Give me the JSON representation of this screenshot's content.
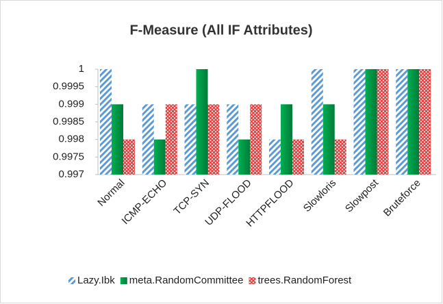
{
  "chart_data": {
    "type": "bar",
    "title": "F-Measure (All IF Attributes)",
    "categories": [
      "Normal",
      "ICMP-ECHO",
      "TCP-SYN",
      "UDP-FLOOD",
      "HTTPFLOOD",
      "Slowloris",
      "Slowpost",
      "Bruteforce"
    ],
    "series": [
      {
        "name": "Lazy.Ibk",
        "color": "#5b9bd5",
        "pattern": "stripes",
        "values": [
          1,
          0.999,
          0.999,
          0.999,
          0.998,
          1,
          1,
          1
        ]
      },
      {
        "name": "meta.RandomCommittee",
        "color": "#00b050",
        "pattern": "solid",
        "values": [
          0.999,
          0.998,
          1,
          0.998,
          0.999,
          0.999,
          1,
          1
        ]
      },
      {
        "name": "trees.RandomForest",
        "color": "#e03c3c",
        "pattern": "crosshatch",
        "values": [
          0.998,
          0.999,
          0.999,
          0.999,
          0.998,
          0.998,
          1,
          1
        ]
      }
    ],
    "ylim": [
      0.997,
      1
    ],
    "yticks": [
      0.997,
      0.9975,
      0.998,
      0.9985,
      0.999,
      0.9995,
      1
    ],
    "legend": "bottom"
  }
}
